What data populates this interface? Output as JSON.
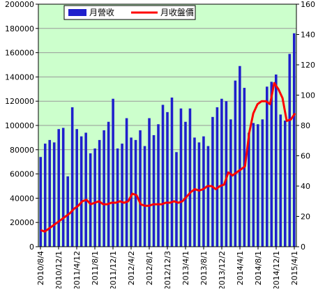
{
  "colors": {
    "plot_background": "#ccffcc",
    "bar_fill": "#1f1fcc",
    "line_stroke": "#ff0000",
    "grid": "#999999",
    "axis": "#000000"
  },
  "chart_data": {
    "type": "bar",
    "title": "",
    "grid": true,
    "legend_placement": "top-left",
    "y_left": {
      "ylim": [
        0,
        200000
      ],
      "ticks": [
        "0",
        "20000",
        "40000",
        "60000",
        "80000",
        "100000",
        "120000",
        "140000",
        "160000",
        "180000",
        "200000"
      ]
    },
    "y_right": {
      "ylim": [
        0,
        160
      ],
      "ticks": [
        "0",
        "20",
        "40",
        "60",
        "80",
        "100",
        "120",
        "140",
        "160"
      ]
    },
    "x_tick_labels": [
      "2010/8/4",
      "2010/12/1",
      "2011/4/12",
      "2011/8/1",
      "2011/12/1",
      "2012/4/2",
      "2012/8/1",
      "2012/12/3",
      "2013/4/1",
      "2013/8/1",
      "2013/12/2",
      "2014/4/1",
      "2014/8/1",
      "2014/12/1",
      "2015/4/1"
    ],
    "series": [
      {
        "name": "月營收",
        "type": "bar",
        "axis": "left",
        "values": [
          74000,
          85000,
          88000,
          86000,
          97000,
          98000,
          58000,
          115000,
          97000,
          91000,
          94000,
          77000,
          81000,
          88000,
          96000,
          103000,
          122000,
          81000,
          85000,
          106000,
          90000,
          88000,
          96000,
          83000,
          106000,
          92000,
          101000,
          117000,
          111000,
          123000,
          78000,
          114000,
          103000,
          114000,
          90000,
          86000,
          91000,
          83000,
          107000,
          115000,
          122000,
          120000,
          105000,
          137000,
          149000,
          131000,
          94000,
          102000,
          101000,
          105000,
          132000,
          136000,
          142000,
          109000,
          104000,
          159000,
          176000
        ]
      },
      {
        "name": "月收盤價",
        "type": "line",
        "axis": "right",
        "values": [
          11,
          10,
          12,
          14,
          16,
          18,
          20,
          22,
          25,
          27,
          30,
          31,
          28,
          29,
          30,
          28,
          28,
          29,
          29,
          30,
          29,
          30,
          35,
          34,
          28,
          27,
          27,
          28,
          28,
          28,
          29,
          29,
          30,
          29,
          30,
          33,
          36,
          38,
          37,
          38,
          40,
          40,
          38,
          40,
          41,
          49,
          47,
          49,
          51,
          53,
          75,
          88,
          94,
          96,
          96,
          94,
          108,
          104,
          98,
          83,
          84,
          88
        ]
      }
    ]
  }
}
